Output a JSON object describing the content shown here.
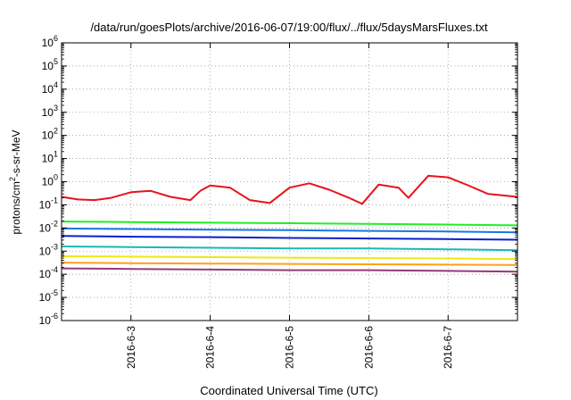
{
  "chart_data": {
    "type": "line",
    "title": "/data/run/goesPlots/archive/2016-06-07/19:00/flux/../flux/5daysMarsFluxes.txt",
    "xlabel": "Coordinated Universal Time (UTC)",
    "ylabel": {
      "prefix": "protons/cm",
      "sup": "2",
      "suffix": "-s-sr-MeV"
    },
    "x_range": [
      "2016-06-02 03:00",
      "2016-06-07 21:00"
    ],
    "x_ticks": [
      "2016-6-3",
      "2016-6-4",
      "2016-6-5",
      "2016-6-6",
      "2016-6-7"
    ],
    "y_scale": "log",
    "y_range": [
      1e-06,
      1000000.0
    ],
    "y_ticks": [
      {
        "base": "10",
        "exp": "-6"
      },
      {
        "base": "10",
        "exp": "-5"
      },
      {
        "base": "10",
        "exp": "-4"
      },
      {
        "base": "10",
        "exp": "-3"
      },
      {
        "base": "10",
        "exp": "-2"
      },
      {
        "base": "10",
        "exp": "-1"
      },
      {
        "base": "10",
        "exp": "0"
      },
      {
        "base": "10",
        "exp": "1"
      },
      {
        "base": "10",
        "exp": "2"
      },
      {
        "base": "10",
        "exp": "3"
      },
      {
        "base": "10",
        "exp": "4"
      },
      {
        "base": "10",
        "exp": "5"
      },
      {
        "base": "10",
        "exp": "6"
      }
    ],
    "grid": true,
    "legend": "none",
    "series": [
      {
        "color": "#e8121b",
        "x": [
          "2016-06-02 03:00",
          "2016-06-02 08:00",
          "2016-06-02 13:00",
          "2016-06-02 18:00",
          "2016-06-03 00:00",
          "2016-06-03 06:00",
          "2016-06-03 12:00",
          "2016-06-03 18:00",
          "2016-06-03 21:00",
          "2016-06-04 00:00",
          "2016-06-04 06:00",
          "2016-06-04 12:00",
          "2016-06-04 18:00",
          "2016-06-05 00:00",
          "2016-06-05 06:00",
          "2016-06-05 12:00",
          "2016-06-05 18:00",
          "2016-06-05 22:00",
          "2016-06-06 03:00",
          "2016-06-06 09:00",
          "2016-06-06 12:00",
          "2016-06-06 18:00",
          "2016-06-07 00:00",
          "2016-06-07 06:00",
          "2016-06-07 12:00",
          "2016-06-07 21:00"
        ],
        "y": [
          0.22,
          0.17,
          0.16,
          0.2,
          0.35,
          0.4,
          0.22,
          0.16,
          0.4,
          0.68,
          0.55,
          0.16,
          0.12,
          0.55,
          0.85,
          0.45,
          0.2,
          0.11,
          0.75,
          0.55,
          0.2,
          1.8,
          1.55,
          0.7,
          0.3,
          0.22
        ]
      },
      {
        "color": "#22ee22",
        "x": [
          "2016-06-02 03:00",
          "2016-06-03 00:00",
          "2016-06-04 00:00",
          "2016-06-05 00:00",
          "2016-06-06 00:00",
          "2016-06-07 00:00",
          "2016-06-07 21:00"
        ],
        "y": [
          0.019,
          0.018,
          0.017,
          0.016,
          0.015,
          0.014,
          0.013
        ]
      },
      {
        "color": "#1a74e8",
        "x": [
          "2016-06-02 03:00",
          "2016-06-03 00:00",
          "2016-06-04 00:00",
          "2016-06-05 00:00",
          "2016-06-06 00:00",
          "2016-06-07 00:00",
          "2016-06-07 21:00"
        ],
        "y": [
          0.0095,
          0.009,
          0.0085,
          0.008,
          0.0075,
          0.007,
          0.0065
        ]
      },
      {
        "color": "#0b1fcc",
        "x": [
          "2016-06-02 03:00",
          "2016-06-03 00:00",
          "2016-06-04 00:00",
          "2016-06-05 00:00",
          "2016-06-06 00:00",
          "2016-06-07 00:00",
          "2016-06-07 21:00"
        ],
        "y": [
          0.0045,
          0.0042,
          0.004,
          0.0037,
          0.0035,
          0.0033,
          0.0031
        ]
      },
      {
        "color": "#18b8b8",
        "x": [
          "2016-06-02 03:00",
          "2016-06-03 00:00",
          "2016-06-04 00:00",
          "2016-06-05 00:00",
          "2016-06-06 00:00",
          "2016-06-07 00:00",
          "2016-06-07 21:00"
        ],
        "y": [
          0.0016,
          0.0015,
          0.0014,
          0.0013,
          0.0013,
          0.0012,
          0.0011
        ]
      },
      {
        "color": "#ece818",
        "x": [
          "2016-06-02 03:00",
          "2016-06-03 00:00",
          "2016-06-04 00:00",
          "2016-06-05 00:00",
          "2016-06-06 00:00",
          "2016-06-07 00:00",
          "2016-06-07 21:00"
        ],
        "y": [
          0.0006,
          0.00058,
          0.00055,
          0.00052,
          0.0005,
          0.00048,
          0.00045
        ]
      },
      {
        "color": "#ffa018",
        "x": [
          "2016-06-02 03:00",
          "2016-06-03 00:00",
          "2016-06-04 00:00",
          "2016-06-05 00:00",
          "2016-06-06 00:00",
          "2016-06-07 00:00",
          "2016-06-07 21:00"
        ],
        "y": [
          0.00032,
          0.0003,
          0.00029,
          0.00028,
          0.00027,
          0.00026,
          0.00025
        ]
      },
      {
        "color": "#943a78",
        "x": [
          "2016-06-02 03:00",
          "2016-06-03 00:00",
          "2016-06-04 00:00",
          "2016-06-05 00:00",
          "2016-06-06 00:00",
          "2016-06-07 00:00",
          "2016-06-07 21:00"
        ],
        "y": [
          0.00018,
          0.00017,
          0.00016,
          0.00015,
          0.00015,
          0.00014,
          0.00013
        ]
      }
    ]
  }
}
